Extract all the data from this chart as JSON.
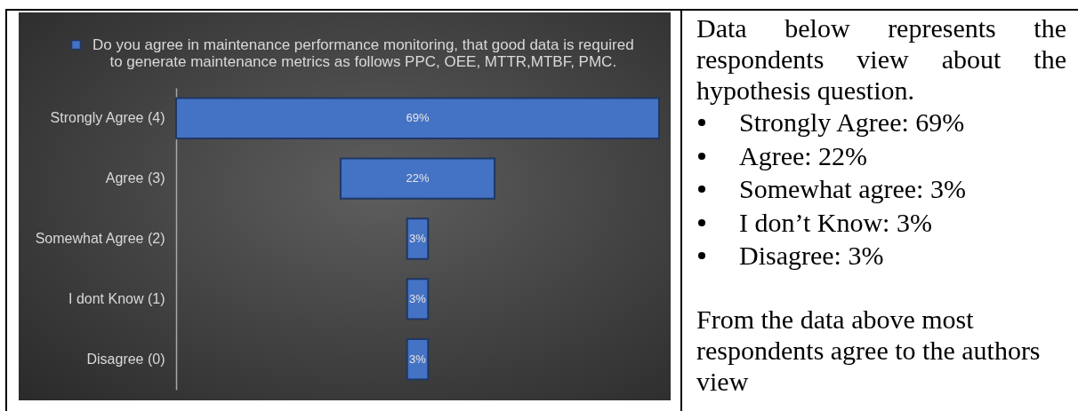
{
  "chart_data": {
    "type": "other",
    "categories": [
      "Strongly Agree (4)",
      "Agree (3)",
      "Somewhat Agree (2)",
      "I dont Know (1)",
      "Disagree (0)"
    ],
    "series": [
      {
        "name": "Do you agree in maintenance performance monitoring, that good data is required to generate maintenance metrics as follows PPC, OEE, MTTR,MTBF, PMC.",
        "color": "#4472c4",
        "values": [
          69,
          22,
          3,
          3,
          3
        ],
        "value_labels": [
          "69%",
          "22%",
          "3%",
          "3%",
          "3%"
        ]
      }
    ],
    "legend": "top",
    "annotations": [
      "Data below represents the respondents view about the hypothesis question.",
      "Strongly Agree: 69%",
      "Agree: 22%",
      "Somewhat agree: 3%",
      "I don’t Know: 3%",
      "Disagree: 3%",
      "From the data above most respondents agree to the authors view"
    ]
  }
}
